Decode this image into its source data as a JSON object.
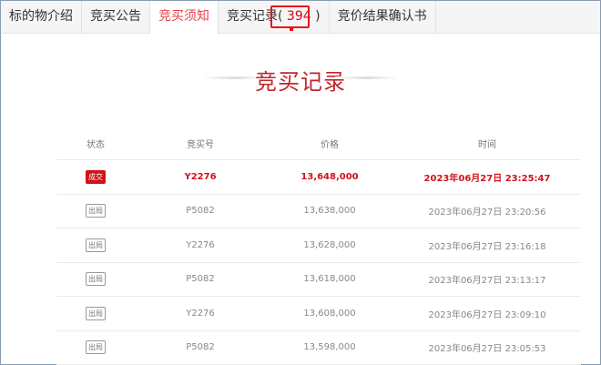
{
  "tabs": [
    {
      "label": "标的物介绍"
    },
    {
      "label": "竞买公告"
    },
    {
      "label": "竞买须知",
      "active": true
    },
    {
      "label": "竞买记录",
      "count": "394"
    },
    {
      "label": "竞价结果确认书"
    }
  ],
  "section_title": "竞买记录",
  "table": {
    "headers": [
      "状态",
      "竞买号",
      "价格",
      "时间"
    ],
    "rows": [
      {
        "status": "成交",
        "bidder": "Y2276",
        "price": "13,648,000",
        "time": "2023年06月27日 23:25:47"
      },
      {
        "status": "出局",
        "bidder": "P5082",
        "price": "13,638,000",
        "time": "2023年06月27日 23:20:56"
      },
      {
        "status": "出局",
        "bidder": "Y2276",
        "price": "13,628,000",
        "time": "2023年06月27日 23:16:18"
      },
      {
        "status": "出局",
        "bidder": "P5082",
        "price": "13,618,000",
        "time": "2023年06月27日 23:13:17"
      },
      {
        "status": "出局",
        "bidder": "Y2276",
        "price": "13,608,000",
        "time": "2023年06月27日 23:09:10"
      },
      {
        "status": "出局",
        "bidder": "P5082",
        "price": "13,598,000",
        "time": "2023年06月27日 23:05:53"
      }
    ]
  },
  "colors": {
    "accent": "#c0262d",
    "winner": "#d0121b",
    "annotation": "#e8141b"
  }
}
